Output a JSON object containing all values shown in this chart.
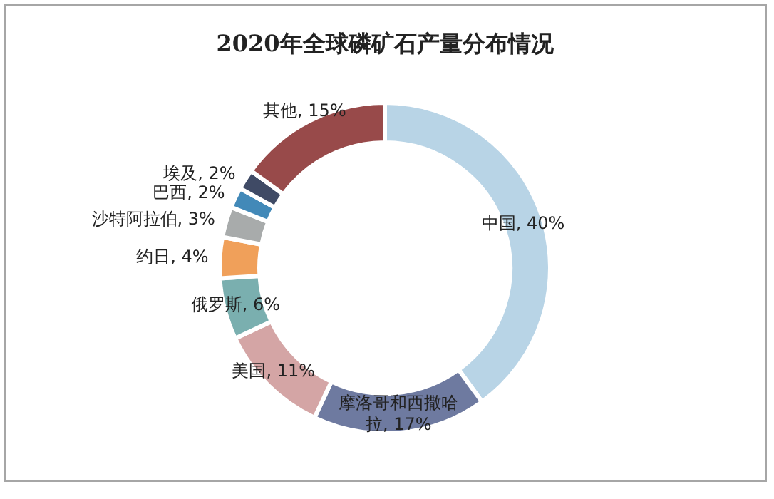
{
  "chart_data": {
    "type": "donut",
    "title": "2020年全球磷矿石产量分布情况",
    "categories": [
      "中国",
      "摩洛哥和西撒哈拉",
      "美国",
      "俄罗斯",
      "约日",
      "沙特阿拉伯",
      "巴西",
      "埃及",
      "其他"
    ],
    "values": [
      40,
      17,
      11,
      6,
      4,
      3,
      2,
      2,
      15
    ],
    "colors": [
      "#b8d4e6",
      "#6e7aa0",
      "#d4a5a5",
      "#7aafaf",
      "#f0a05a",
      "#a8abab",
      "#4289b8",
      "#3f4a65",
      "#984a4a"
    ],
    "value_labels": [
      "40%",
      "17%",
      "11%",
      "6%",
      "4%",
      "3%",
      "2%",
      "2%",
      "15%"
    ]
  }
}
